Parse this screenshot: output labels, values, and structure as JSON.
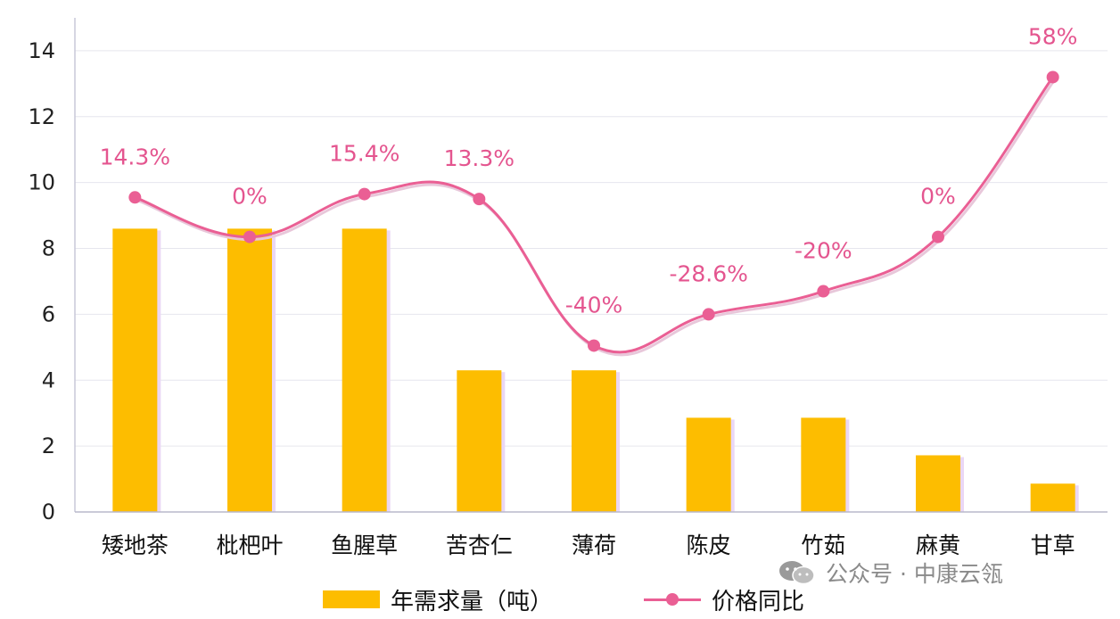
{
  "chart_data": {
    "type": "bar",
    "categories": [
      "矮地茶",
      "枇杷叶",
      "鱼腥草",
      "苦杏仁",
      "薄荷",
      "陈皮",
      "竹茹",
      "麻黄",
      "甘草"
    ],
    "y_ticks": [
      "0",
      "2",
      "4",
      "6",
      "8",
      "10",
      "12",
      "14"
    ],
    "ylim": [
      0,
      15
    ],
    "grid": true,
    "legend_position": "bottom",
    "series": [
      {
        "name": "年需求量（吨）",
        "type": "bar",
        "color": "#fdbd00",
        "values": [
          8.6,
          8.6,
          8.6,
          4.3,
          4.3,
          2.86,
          2.86,
          1.72,
          0.86
        ]
      },
      {
        "name": "价格同比",
        "type": "line",
        "color": "#ea5f94",
        "smooth": true,
        "values": [
          9.55,
          8.35,
          9.65,
          9.5,
          5.05,
          6.0,
          6.7,
          8.35,
          13.2
        ],
        "labels": [
          "14.3%",
          "0%",
          "15.4%",
          "13.3%",
          "-40%",
          "-28.6%",
          "-20%",
          "0%",
          "58%"
        ]
      }
    ]
  },
  "watermark": {
    "icon": "wechat-icon",
    "text": "公众号 · 中康云瓴"
  }
}
